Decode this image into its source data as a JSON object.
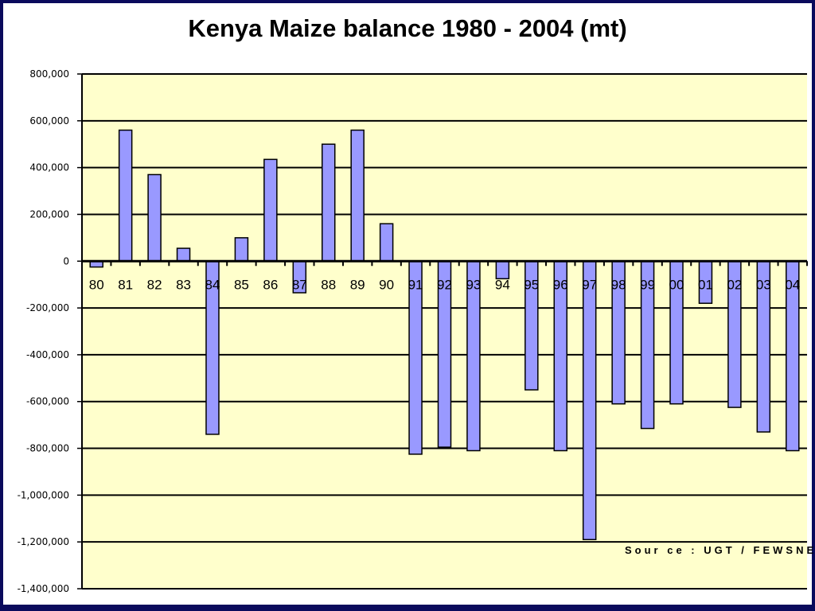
{
  "chart_data": {
    "type": "bar",
    "title": "Kenya Maize balance 1980 - 2004 (mt)",
    "xlabel": "",
    "ylabel": "",
    "categories": [
      "80",
      "81",
      "82",
      "83",
      "84",
      "85",
      "86",
      "87",
      "88",
      "89",
      "90",
      "91",
      "92",
      "93",
      "94",
      "95",
      "96",
      "97",
      "98",
      "99",
      "00",
      "01",
      "02",
      "03",
      "04"
    ],
    "values": [
      -25000,
      560000,
      370000,
      55000,
      -740000,
      100000,
      435000,
      -135000,
      500000,
      560000,
      160000,
      -825000,
      -795000,
      -810000,
      -75000,
      -550000,
      -810000,
      -1190000,
      -610000,
      -715000,
      -610000,
      -180000,
      -625000,
      -730000,
      -810000
    ],
    "ylim": [
      -1400000,
      800000
    ],
    "yticks": [
      "800,000",
      "600,000",
      "400,000",
      "200,000",
      "0",
      "-200,000",
      "-400,000",
      "-600,000",
      "-800,000",
      "-1,000,000",
      "-1,200,000",
      "-1,400,000"
    ],
    "ytick_values": [
      800000,
      600000,
      400000,
      200000,
      0,
      -200000,
      -400000,
      -600000,
      -800000,
      -1000000,
      -1200000,
      -1400000
    ],
    "grid": true,
    "annotation": "Sour ce : UGT / FEWSNET",
    "colors": {
      "bar_fill": "#9999ff",
      "bar_stroke": "#000000",
      "plot_background": "#ffffcc",
      "gridline": "#000000",
      "slide_border": "#0a0a5c"
    }
  }
}
